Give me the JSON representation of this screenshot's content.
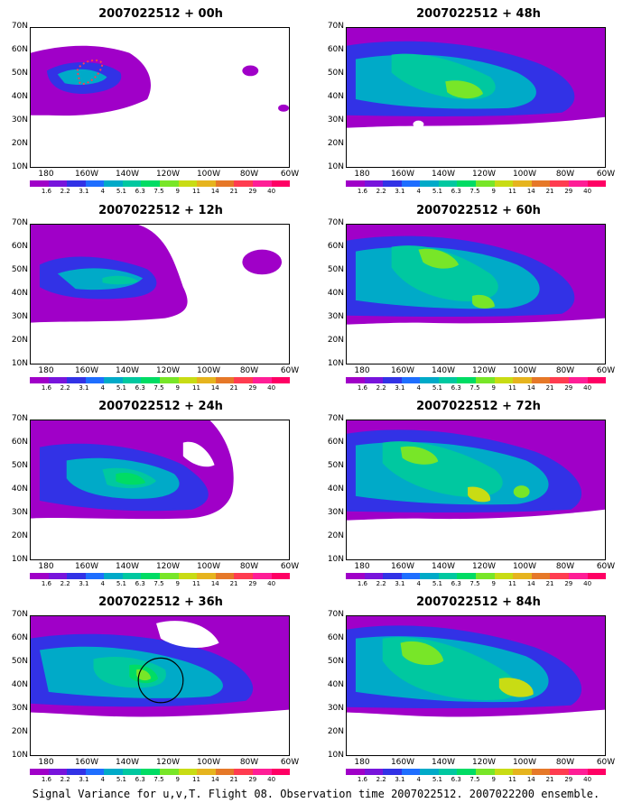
{
  "caption": "Signal Variance for u,v,T. Flight 08. Observation time 2007022512. 2007022200 ensemble.",
  "y_labels": [
    "70N",
    "60N",
    "50N",
    "40N",
    "30N",
    "20N",
    "10N"
  ],
  "x_labels": [
    "180",
    "160W",
    "140W",
    "120W",
    "100W",
    "80W",
    "60W"
  ],
  "colorbar_labels": [
    "1.6",
    "2.2",
    "3.1",
    "4",
    "5.1",
    "6.3",
    "7.5",
    "9",
    "11",
    "14",
    "21",
    "29",
    "40"
  ],
  "colorbar_colors": [
    "#a000c8",
    "#7814dc",
    "#3232e6",
    "#1e6eff",
    "#00aac8",
    "#00c8a0",
    "#00dc64",
    "#78e628",
    "#c8dc14",
    "#e6b41e",
    "#e67828",
    "#ff3c50",
    "#ff1e96",
    "#ff0064"
  ],
  "panels": [
    {
      "title": "2007022512 + 00h"
    },
    {
      "title": "2007022512 + 12h"
    },
    {
      "title": "2007022512 + 24h"
    },
    {
      "title": "2007022512 + 36h"
    },
    {
      "title": "2007022512 + 48h"
    },
    {
      "title": "2007022512 + 60h"
    },
    {
      "title": "2007022512 + 72h"
    },
    {
      "title": "2007022512 + 84h"
    }
  ]
}
